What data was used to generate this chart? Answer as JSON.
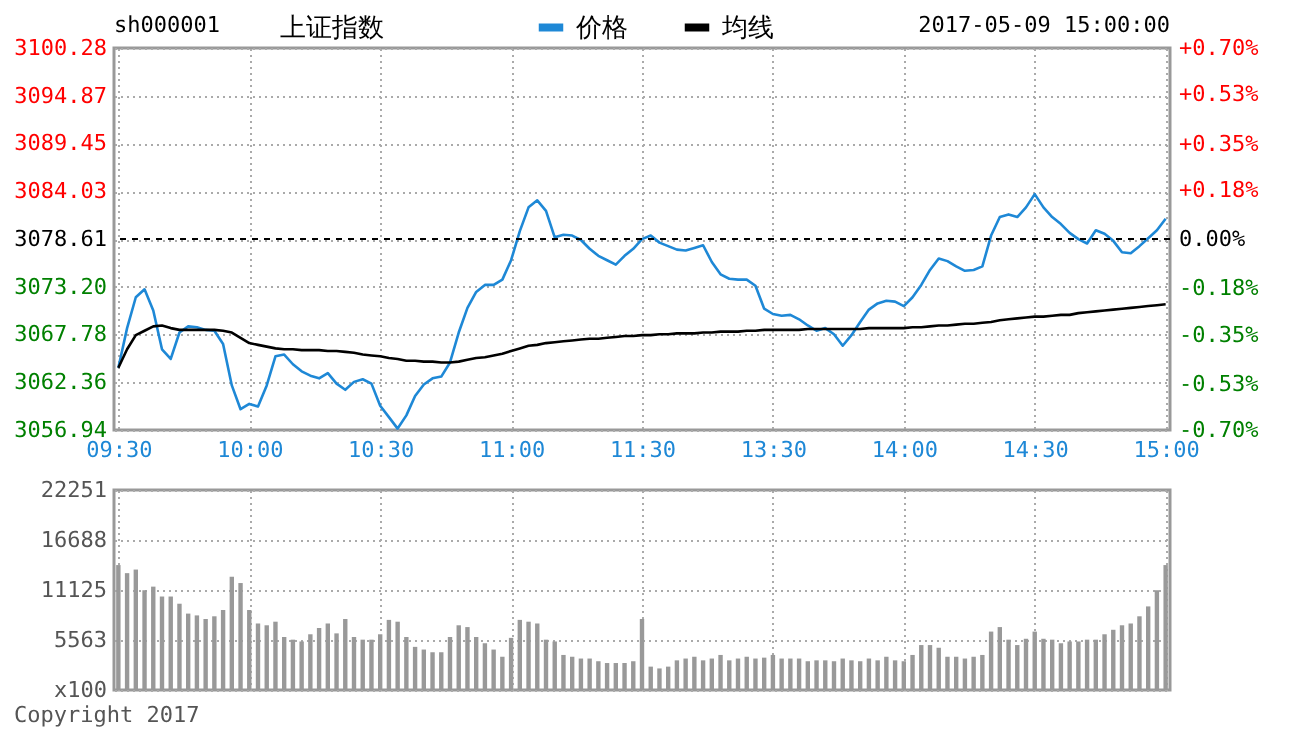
{
  "chart_data": [
    {
      "type": "line",
      "title": "上证指数",
      "subtitle": "sh000001",
      "annotations": [
        "2017-05-09 15:00:00"
      ],
      "categories": [
        "09:30",
        null,
        null,
        null,
        null,
        null,
        null,
        null,
        null,
        null,
        null,
        null,
        null,
        null,
        null,
        "10:00",
        null,
        null,
        null,
        null,
        null,
        null,
        null,
        null,
        null,
        null,
        null,
        null,
        null,
        null,
        "10:30",
        null,
        null,
        null,
        null,
        null,
        null,
        null,
        null,
        null,
        null,
        null,
        null,
        null,
        null,
        "11:00",
        null,
        null,
        null,
        null,
        null,
        null,
        null,
        null,
        null,
        null,
        null,
        null,
        null,
        null,
        "11:30",
        null,
        null,
        null,
        null,
        null,
        null,
        null,
        null,
        null,
        null,
        null,
        null,
        null,
        null,
        "13:30",
        null,
        null,
        null,
        null,
        null,
        null,
        null,
        null,
        null,
        null,
        null,
        null,
        null,
        null,
        "14:00",
        null,
        null,
        null,
        null,
        null,
        null,
        null,
        null,
        null,
        null,
        null,
        null,
        null,
        null,
        "14:30",
        null,
        null,
        null,
        null,
        null,
        null,
        null,
        null,
        null,
        null,
        null,
        null,
        null,
        null,
        "15:00"
      ],
      "ylim": [
        3056.94,
        3100.28
      ],
      "yticks": [
        3056.94,
        3062.36,
        3067.78,
        {
          "value": 3073.2,
          "label": "3073.20"
        },
        3078.61,
        3084.03,
        3089.45,
        3094.87,
        3100.28
      ],
      "y2lim": [
        -0.7,
        0.7
      ],
      "y2ticks": [
        {
          "value": -0.7,
          "label": "-0.70%"
        },
        {
          "value": -0.53,
          "label": "-0.53%"
        },
        {
          "value": -0.35,
          "label": "-0.35%"
        },
        {
          "value": -0.18,
          "label": "-0.18%"
        },
        {
          "value": 0,
          "label": "0.00%"
        },
        {
          "value": 0.18,
          "label": "+0.18%"
        },
        {
          "value": 0.35,
          "label": "+0.35%"
        },
        {
          "value": 0.53,
          "label": "+0.53%"
        },
        {
          "value": 0.7,
          "label": "+0.70%"
        }
      ],
      "ref_lines": [
        {
          "axis": "y2",
          "value": 0,
          "line_style": "dashed",
          "color": "#000000"
        }
      ],
      "grid": true,
      "legend": "top",
      "line_style": "solid",
      "series": [
        {
          "name": "价格",
          "color": "#1e88d6",
          "values": [
            3064.0,
            3068.5,
            3072.0,
            3072.9,
            3070.5,
            3066.1,
            3065.0,
            3068.0,
            3068.7,
            3068.6,
            3068.3,
            3068.2,
            3066.7,
            3062.0,
            3059.3,
            3059.9,
            3059.6,
            3062.0,
            3065.3,
            3065.5,
            3064.4,
            3063.6,
            3063.1,
            3062.8,
            3063.4,
            3062.2,
            3061.5,
            3062.4,
            3062.7,
            3062.2,
            3059.7,
            3058.4,
            3057.1,
            3058.6,
            3060.8,
            3062.1,
            3062.8,
            3063.0,
            3064.6,
            3068.0,
            3070.8,
            3072.6,
            3073.4,
            3073.4,
            3074.0,
            3076.2,
            3079.5,
            3082.2,
            3083.0,
            3081.8,
            3078.8,
            3079.1,
            3079.0,
            3078.5,
            3077.5,
            3076.7,
            3076.2,
            3075.7,
            3076.7,
            3077.5,
            3078.6,
            3079.0,
            3078.2,
            3077.8,
            3077.4,
            3077.3,
            3077.6,
            3077.9,
            3076.0,
            3074.6,
            3074.1,
            3074.0,
            3074.0,
            3073.3,
            3070.7,
            3070.1,
            3069.9,
            3070.0,
            3069.5,
            3068.8,
            3068.2,
            3068.5,
            3067.8,
            3066.5,
            3067.7,
            3069.2,
            3070.6,
            3071.3,
            3071.6,
            3071.5,
            3071.0,
            3072.0,
            3073.4,
            3075.1,
            3076.4,
            3076.1,
            3075.5,
            3075.0,
            3075.1,
            3075.5,
            3079.0,
            3081.1,
            3081.4,
            3081.1,
            3082.2,
            3083.7,
            3082.2,
            3081.1,
            3080.3,
            3079.3,
            3078.6,
            3078.1,
            3079.6,
            3079.2,
            3078.4,
            3077.1,
            3077.0,
            3077.8,
            3078.7,
            3079.6,
            3080.9
          ]
        },
        {
          "name": "均线",
          "color": "#000000",
          "values": [
            3064.0,
            3066.1,
            3067.7,
            3068.2,
            3068.7,
            3068.8,
            3068.5,
            3068.3,
            3068.3,
            3068.3,
            3068.3,
            3068.3,
            3068.2,
            3068.0,
            3067.4,
            3066.8,
            3066.6,
            3066.4,
            3066.2,
            3066.1,
            3066.1,
            3066.0,
            3066.0,
            3066.0,
            3065.9,
            3065.9,
            3065.8,
            3065.7,
            3065.5,
            3065.4,
            3065.3,
            3065.1,
            3065.0,
            3064.8,
            3064.8,
            3064.7,
            3064.7,
            3064.6,
            3064.6,
            3064.7,
            3064.9,
            3065.1,
            3065.2,
            3065.4,
            3065.6,
            3065.9,
            3066.2,
            3066.5,
            3066.6,
            3066.8,
            3066.9,
            3067.0,
            3067.1,
            3067.2,
            3067.3,
            3067.3,
            3067.4,
            3067.5,
            3067.6,
            3067.6,
            3067.7,
            3067.7,
            3067.8,
            3067.8,
            3067.9,
            3067.9,
            3067.9,
            3068.0,
            3068.0,
            3068.1,
            3068.1,
            3068.1,
            3068.2,
            3068.2,
            3068.3,
            3068.3,
            3068.3,
            3068.3,
            3068.3,
            3068.4,
            3068.4,
            3068.4,
            3068.4,
            3068.4,
            3068.4,
            3068.4,
            3068.5,
            3068.5,
            3068.5,
            3068.5,
            3068.5,
            3068.6,
            3068.6,
            3068.7,
            3068.8,
            3068.8,
            3068.9,
            3069.0,
            3069.0,
            3069.1,
            3069.2,
            3069.4,
            3069.5,
            3069.6,
            3069.7,
            3069.8,
            3069.8,
            3069.9,
            3070.0,
            3070.0,
            3070.2,
            3070.3,
            3070.4,
            3070.5,
            3070.6,
            3070.7,
            3070.8,
            3070.9,
            3071.0,
            3071.1,
            3071.2
          ]
        }
      ]
    },
    {
      "type": "bar",
      "annotations": [
        "Copyright 2017"
      ],
      "tick_labels": "y",
      "grid": true,
      "color": "#999999",
      "categories": [
        null,
        null,
        null,
        null,
        null,
        null,
        null,
        null,
        null,
        null,
        null,
        null,
        null,
        null,
        null,
        null,
        null,
        null,
        null,
        null,
        null,
        null,
        null,
        null,
        null,
        null,
        null,
        null,
        null,
        null,
        null,
        null,
        null,
        null,
        null,
        null,
        null,
        null,
        null,
        null,
        null,
        null,
        null,
        null,
        null,
        null,
        null,
        null,
        null,
        null,
        null,
        null,
        null,
        null,
        null,
        null,
        null,
        null,
        null,
        null,
        null,
        null,
        null,
        null,
        null,
        null,
        null,
        null,
        null,
        null,
        null,
        null,
        null,
        null,
        null,
        null,
        null,
        null,
        null,
        null,
        null,
        null,
        null,
        null,
        null,
        null,
        null,
        null,
        null,
        null,
        null,
        null,
        null,
        null,
        null,
        null,
        null,
        null,
        null,
        null,
        null,
        null,
        null,
        null,
        null,
        null,
        null,
        null,
        null,
        null,
        null,
        null,
        null,
        null,
        null,
        null,
        null,
        null,
        null,
        null,
        null
      ],
      "ylim": [
        0,
        22251
      ],
      "yticks": [
        {
          "value": 0,
          "label": "x100"
        },
        5563,
        11125,
        16688,
        22251
      ],
      "values": [
        13900,
        13000,
        13400,
        11100,
        11500,
        10400,
        10400,
        9600,
        8500,
        8300,
        7900,
        8200,
        8900,
        12600,
        11900,
        8900,
        7400,
        7200,
        7600,
        5900,
        5600,
        5400,
        6200,
        6900,
        7400,
        6300,
        7900,
        5900,
        5600,
        5600,
        6200,
        7800,
        7600,
        5900,
        4800,
        4500,
        4200,
        4200,
        5900,
        7200,
        7000,
        5900,
        5200,
        4500,
        3700,
        5800,
        7800,
        7600,
        7400,
        5600,
        5400,
        3900,
        3700,
        3500,
        3500,
        3200,
        3000,
        3000,
        3000,
        3200,
        7900,
        2600,
        2400,
        2600,
        3300,
        3500,
        3700,
        3300,
        3500,
        3900,
        3300,
        3500,
        3700,
        3500,
        3600,
        3900,
        3500,
        3500,
        3500,
        3200,
        3300,
        3300,
        3200,
        3500,
        3300,
        3200,
        3500,
        3300,
        3700,
        3300,
        3200,
        3900,
        5000,
        5000,
        4700,
        3700,
        3700,
        3500,
        3700,
        3900,
        6500,
        7000,
        5600,
        5000,
        5700,
        6500,
        5700,
        5600,
        5200,
        5400,
        5400,
        5600,
        5600,
        6200,
        6700,
        7200,
        7400,
        8200,
        9300,
        11100,
        13900
      ]
    }
  ]
}
